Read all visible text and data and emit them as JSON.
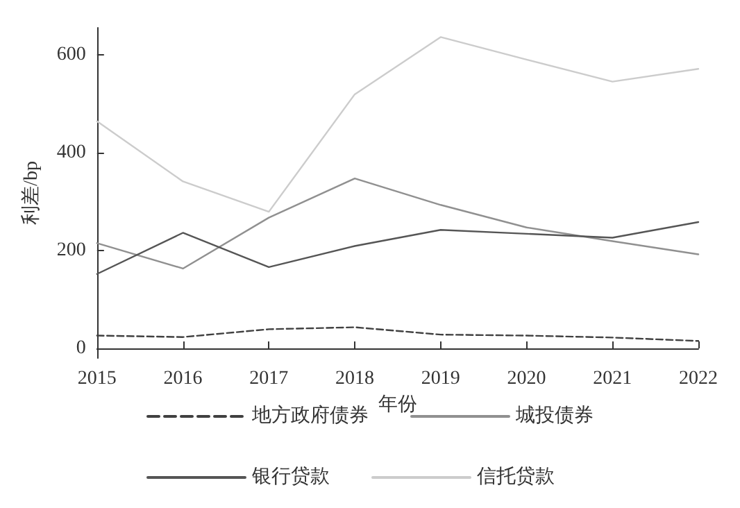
{
  "chart_data": {
    "type": "line",
    "xlabel": "年份",
    "ylabel": "利差/bp",
    "categories": [
      "2015",
      "2016",
      "2017",
      "2018",
      "2019",
      "2020",
      "2021",
      "2022"
    ],
    "series": [
      {
        "name": "地方政府债券",
        "color": "#404040",
        "line_style": "dashed",
        "values": [
          26,
          23,
          39,
          43,
          28,
          26,
          22,
          15
        ]
      },
      {
        "name": "城投债券",
        "color": "#909090",
        "values": [
          215,
          163,
          267,
          347,
          293,
          247,
          219,
          192
        ]
      },
      {
        "name": "银行贷款",
        "color": "#555555",
        "values": [
          152,
          236,
          166,
          209,
          242,
          234,
          226,
          258
        ]
      },
      {
        "name": "信托贷款",
        "color": "#cccccc",
        "values": [
          464,
          341,
          279,
          519,
          636,
          590,
          545,
          571
        ]
      }
    ],
    "ylim": [
      -20,
      655
    ],
    "yticks": [
      0,
      200,
      400,
      600
    ],
    "grid": false,
    "legend": "bottom",
    "marker": "none",
    "line_style": "solid"
  }
}
